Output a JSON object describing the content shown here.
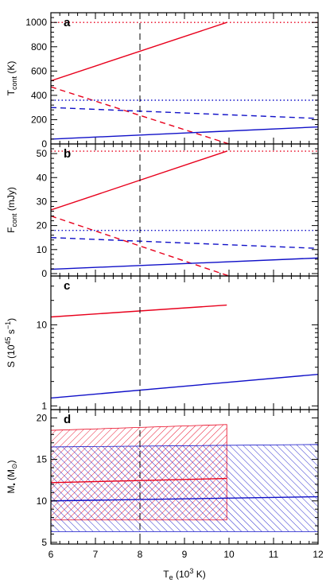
{
  "chart_data": [
    {
      "type": "line",
      "panel_label": "a",
      "ylabel": "T",
      "ylabel_sub": "cont",
      "ylabel_unit": " (K)",
      "ylim": [
        0,
        1080
      ],
      "yticks": [
        0,
        200,
        400,
        600,
        800,
        1000
      ],
      "series": [
        {
          "color": "#e8001c",
          "style": "solid",
          "x": [
            6,
            9.95
          ],
          "y": [
            520,
            1000
          ]
        },
        {
          "color": "#e8001c",
          "style": "dashed",
          "x": [
            6,
            10
          ],
          "y": [
            470,
            0
          ]
        },
        {
          "color": "#e8001c",
          "style": "dotted",
          "x": [
            6,
            12
          ],
          "y": [
            1000,
            1000
          ]
        },
        {
          "color": "#1010c8",
          "style": "solid",
          "x": [
            6,
            12
          ],
          "y": [
            40,
            140
          ]
        },
        {
          "color": "#1010c8",
          "style": "dashed",
          "x": [
            6,
            12
          ],
          "y": [
            300,
            210
          ]
        },
        {
          "color": "#1010c8",
          "style": "dotted",
          "x": [
            6,
            12
          ],
          "y": [
            360,
            360
          ]
        }
      ]
    },
    {
      "type": "line",
      "panel_label": "b",
      "ylabel": "F",
      "ylabel_sub": "cont",
      "ylabel_unit": " (mJy)",
      "ylim": [
        -1,
        54
      ],
      "yticks": [
        0,
        10,
        20,
        30,
        40,
        50
      ],
      "series": [
        {
          "color": "#e8001c",
          "style": "solid",
          "x": [
            6,
            9.95
          ],
          "y": [
            26.5,
            51
          ]
        },
        {
          "color": "#e8001c",
          "style": "dashed",
          "x": [
            6,
            10
          ],
          "y": [
            24,
            -1
          ]
        },
        {
          "color": "#e8001c",
          "style": "dotted",
          "x": [
            6,
            12
          ],
          "y": [
            51,
            51
          ]
        },
        {
          "color": "#1010c8",
          "style": "solid",
          "x": [
            6,
            12
          ],
          "y": [
            1.8,
            6.5
          ]
        },
        {
          "color": "#1010c8",
          "style": "dashed",
          "x": [
            6,
            12
          ],
          "y": [
            15,
            10.5
          ]
        },
        {
          "color": "#1010c8",
          "style": "dotted",
          "x": [
            6,
            12
          ],
          "y": [
            18,
            18
          ]
        }
      ]
    },
    {
      "type": "line",
      "panel_label": "c",
      "ylabel": "S (10",
      "ylabel_sup": "45",
      "ylabel_unit": " s",
      "ylabel_sup2": "−1",
      "ylabel_close": ")",
      "yscale": "log",
      "ylim": [
        0.9,
        40
      ],
      "yticks": [
        1,
        10
      ],
      "series": [
        {
          "color": "#e8001c",
          "style": "solid",
          "x": [
            6,
            9.95
          ],
          "y": [
            12.5,
            17.5
          ]
        },
        {
          "color": "#1010c8",
          "style": "solid",
          "x": [
            6,
            12
          ],
          "y": [
            1.25,
            2.45
          ]
        }
      ]
    },
    {
      "type": "area",
      "panel_label": "d",
      "ylabel": "M",
      "ylabel_sub": "•",
      "ylabel_unit": " (M",
      "ylabel_sub2": "⊙",
      "ylabel_close": ")",
      "ylim": [
        4.8,
        21
      ],
      "yticks": [
        5,
        10,
        15,
        20
      ],
      "bands": [
        {
          "color": "#e8001c",
          "hatch": "right",
          "x": [
            6,
            9.95
          ],
          "lower": [
            7.7,
            7.7
          ],
          "upper": [
            18.5,
            19.2
          ]
        },
        {
          "color": "#1010c8",
          "hatch": "left",
          "x": [
            6,
            12
          ],
          "lower": [
            6.3,
            6.3
          ],
          "upper": [
            16.5,
            16.8
          ]
        }
      ],
      "series": [
        {
          "color": "#e8001c",
          "style": "solid",
          "x": [
            6,
            9.95
          ],
          "y": [
            12.2,
            12.7
          ]
        },
        {
          "color": "#1010c8",
          "style": "solid",
          "x": [
            6,
            12
          ],
          "y": [
            10,
            10.5
          ]
        }
      ]
    }
  ],
  "x_axis": {
    "xlim": [
      6,
      12
    ],
    "xticks": [
      6,
      7,
      8,
      9,
      10,
      11,
      12
    ],
    "xlabel": "T",
    "xlabel_sub": "e",
    "xlabel_rest": " (10",
    "xlabel_sup": "3",
    "xlabel_close": " K)",
    "vline": 8
  }
}
